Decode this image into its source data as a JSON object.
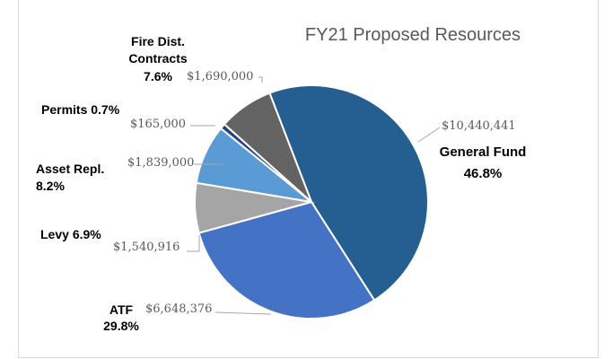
{
  "chart_data": {
    "type": "pie",
    "title": "FY21 Proposed Resources",
    "categories": [
      "General Fund",
      "ATF",
      "Levy",
      "Asset Repl.",
      "Permits",
      "Fire Dist. Contracts"
    ],
    "values": [
      10440441,
      6648376,
      1540916,
      1839000,
      165000,
      1690000
    ],
    "value_labels": [
      "$10,440,441",
      "$6,648,376",
      "$1,540,916",
      "$1,839,000",
      "$165,000",
      "$1,690,000"
    ],
    "percent_labels": [
      "46.8%",
      "29.8%",
      "6.9%",
      "8.2%",
      "0.7%",
      "7.6%"
    ],
    "colors": [
      "#255e91",
      "#4472c4",
      "#a5a5a5",
      "#5b9bd5",
      "#264478",
      "#636363"
    ]
  }
}
